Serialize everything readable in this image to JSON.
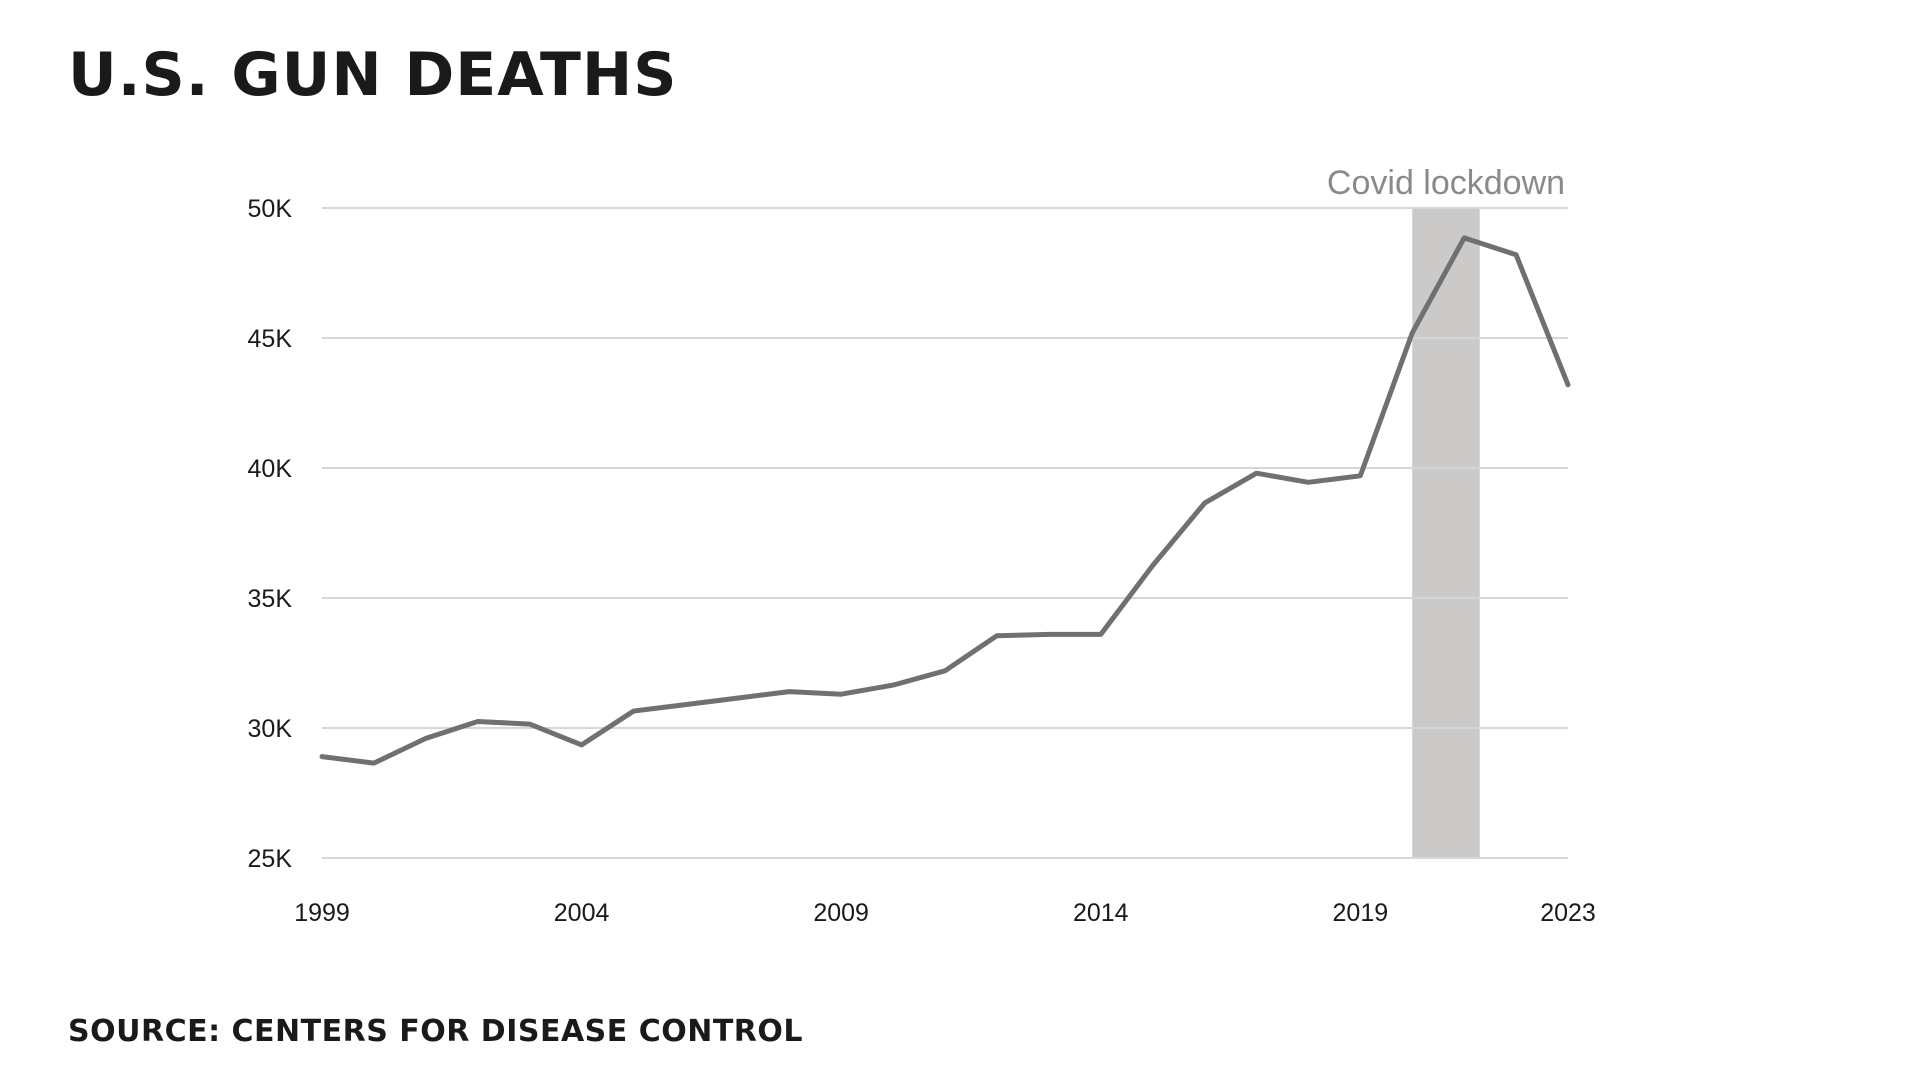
{
  "title": "U.S. GUN DEATHS",
  "source": "SOURCE: CENTERS FOR DISEASE CONTROL",
  "colors": {
    "line": "#707070",
    "grid": "#d6d6d6",
    "band": "#cbcac8",
    "annotation_text": "#8a8a8a"
  },
  "chart_data": {
    "type": "line",
    "title": "U.S. GUN DEATHS",
    "xlabel": "",
    "ylabel": "",
    "x": [
      1999,
      2000,
      2001,
      2002,
      2003,
      2004,
      2005,
      2006,
      2007,
      2008,
      2009,
      2010,
      2011,
      2012,
      2013,
      2014,
      2015,
      2016,
      2017,
      2018,
      2019,
      2020,
      2021,
      2022,
      2023
    ],
    "series": [
      {
        "values": [
          28900,
          28650,
          29600,
          30250,
          30150,
          29350,
          30650,
          30900,
          31150,
          31400,
          31300,
          31650,
          32200,
          33550,
          33600,
          33600,
          36250,
          38650,
          39800,
          39450,
          39700,
          45200,
          48850,
          48200,
          43200
        ]
      }
    ],
    "xticks": [
      "1999",
      "2004",
      "2009",
      "2014",
      "2019",
      "2023"
    ],
    "yticks": [
      "25K",
      "30K",
      "35K",
      "40K",
      "45K",
      "50K"
    ],
    "ytick_values": [
      25000,
      30000,
      35000,
      40000,
      45000,
      50000
    ],
    "xlim": [
      1999,
      2023
    ],
    "ylim": [
      25000,
      50000
    ],
    "grid": "horizontal",
    "annotations": [
      {
        "label": "Covid lockdown",
        "x_start": 2020,
        "x_end": 2021.3
      }
    ]
  }
}
